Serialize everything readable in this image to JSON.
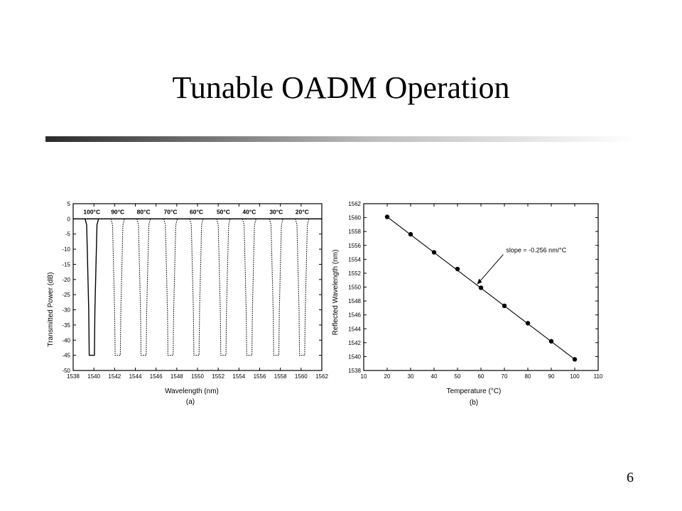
{
  "slide": {
    "title": "Tunable OADM Operation",
    "page_number": "6",
    "rule_colors": [
      "#2a2a2a",
      "#bdbdbd",
      "#ffffff"
    ]
  },
  "chart_data": [
    {
      "type": "line",
      "panel_label": "(a)",
      "xlabel": "Wavelength (nm)",
      "ylabel": "Transmitted Power (dB)",
      "xlim": [
        1538,
        1562
      ],
      "ylim": [
        -50,
        5
      ],
      "xticks": [
        1538,
        1540,
        1542,
        1544,
        1546,
        1548,
        1550,
        1552,
        1554,
        1556,
        1558,
        1560,
        1562
      ],
      "yticks": [
        5,
        0,
        -5,
        -10,
        -15,
        -20,
        -25,
        -30,
        -35,
        -40,
        -45,
        -50
      ],
      "grid": false,
      "baseline_db": 0,
      "notch_depth_db": -45,
      "notch_halfwidth_nm": 0.25,
      "notch_edge_nm": 0.5,
      "series": [
        {
          "label": "100°C",
          "center": 1539.8,
          "style": "solid"
        },
        {
          "label": "90°C",
          "center": 1542.3,
          "style": "dotted"
        },
        {
          "label": "80°C",
          "center": 1544.8,
          "style": "dotted"
        },
        {
          "label": "70°C",
          "center": 1547.4,
          "style": "dotted"
        },
        {
          "label": "60°C",
          "center": 1549.9,
          "style": "dotted"
        },
        {
          "label": "50°C",
          "center": 1552.5,
          "style": "dotted"
        },
        {
          "label": "40°C",
          "center": 1555.0,
          "style": "dotted"
        },
        {
          "label": "30°C",
          "center": 1557.6,
          "style": "dotted"
        },
        {
          "label": "20°C",
          "center": 1560.1,
          "style": "dotted"
        }
      ]
    },
    {
      "type": "scatter",
      "panel_label": "(b)",
      "xlabel": "Temperature (°C)",
      "ylabel": "Reflected Wavelength (nm)",
      "xlim": [
        10,
        110
      ],
      "ylim": [
        1538,
        1562
      ],
      "xticks": [
        10,
        20,
        30,
        40,
        50,
        60,
        70,
        80,
        90,
        100,
        110
      ],
      "yticks": [
        1538,
        1540,
        1542,
        1544,
        1546,
        1548,
        1550,
        1552,
        1554,
        1556,
        1558,
        1560,
        1562
      ],
      "grid": false,
      "points": [
        {
          "x": 20,
          "y": 1560.1
        },
        {
          "x": 30,
          "y": 1557.6
        },
        {
          "x": 40,
          "y": 1555.0
        },
        {
          "x": 50,
          "y": 1552.6
        },
        {
          "x": 60,
          "y": 1549.9
        },
        {
          "x": 70,
          "y": 1547.3
        },
        {
          "x": 80,
          "y": 1544.8
        },
        {
          "x": 90,
          "y": 1542.2
        },
        {
          "x": 100,
          "y": 1539.6
        }
      ],
      "fit_line": {
        "x": [
          20,
          100
        ],
        "y": [
          1560.1,
          1539.6
        ]
      },
      "annotation": {
        "text": "slope = -0.256 nm/°C",
        "anchor_x": 58,
        "anchor_y": 1550.3
      }
    }
  ]
}
